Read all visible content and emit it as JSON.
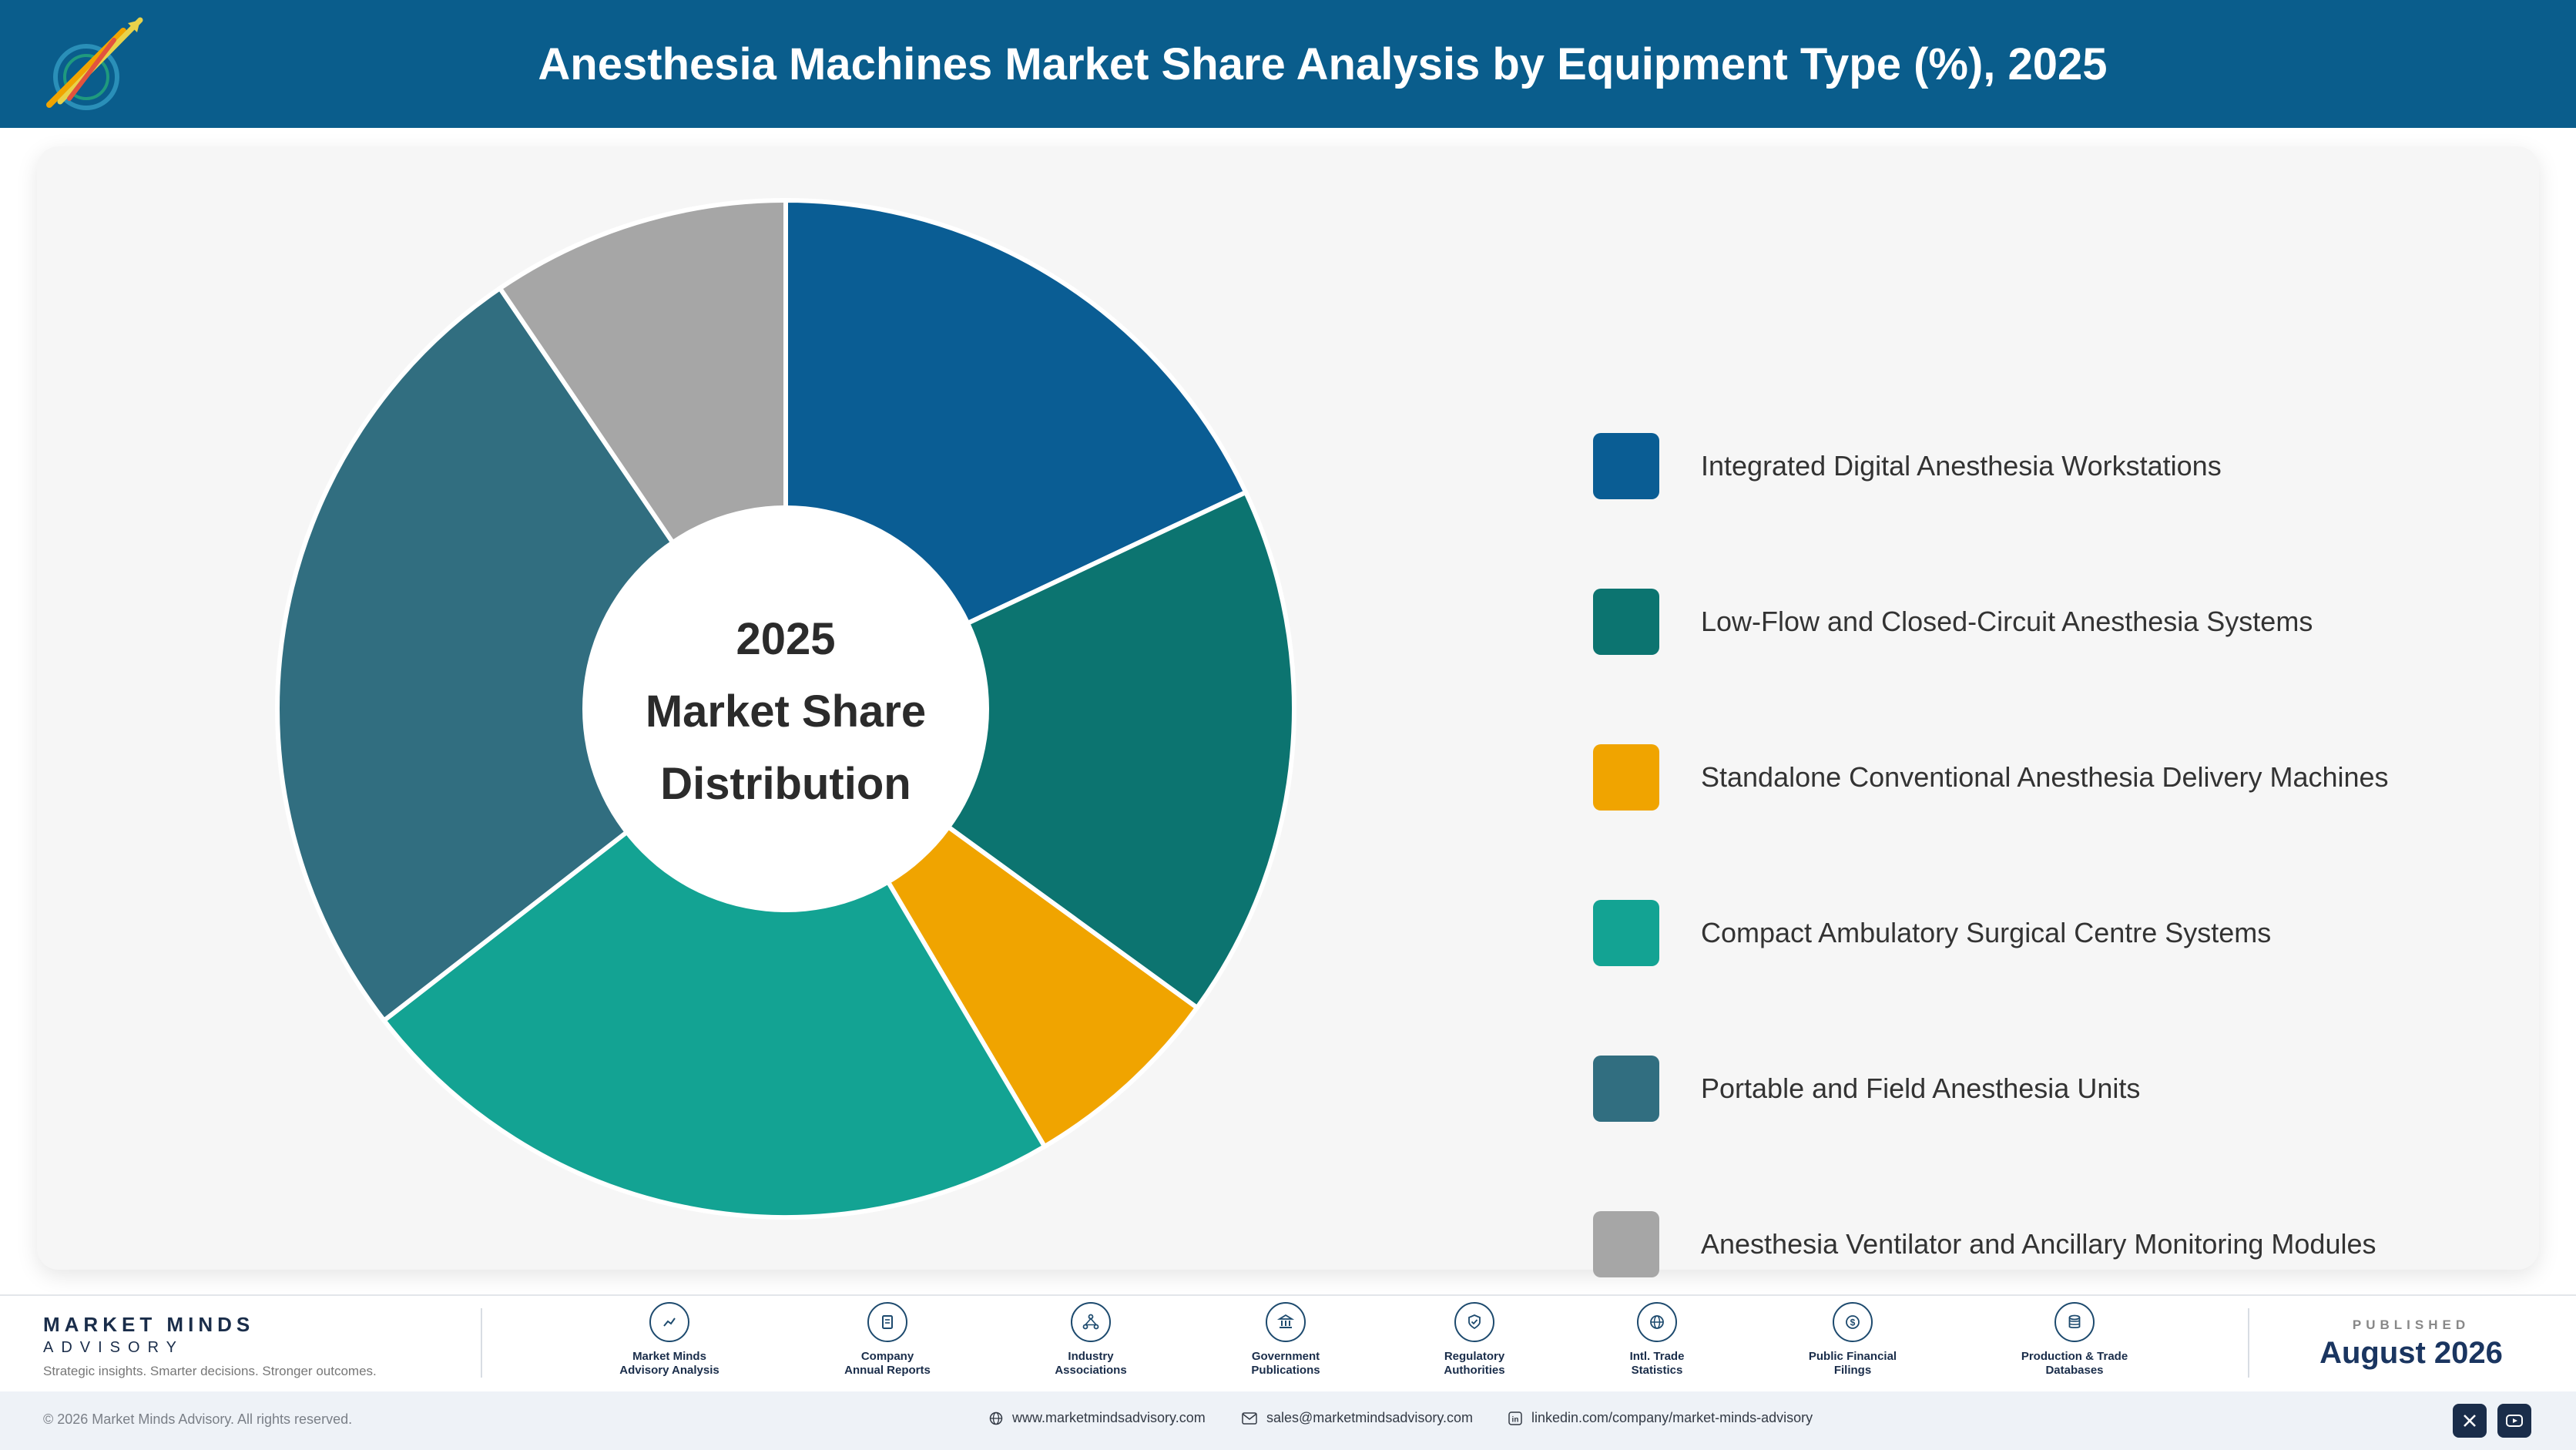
{
  "header": {
    "title": "Anesthesia Machines Market Share Analysis by Equipment Type (%), 2025"
  },
  "colors": {
    "header_bg": "#0a5d8c",
    "integrated": "#0a5d94",
    "low_flow": "#0c7470",
    "standalone": "#f0a400",
    "compact": "#13a393",
    "portable": "#316e80",
    "ventilator": "#a6a6a6"
  },
  "chart_data": {
    "type": "pie",
    "variant": "donut",
    "center_text": [
      "2025",
      "Market Share",
      "Distribution"
    ],
    "legend_placement": "right",
    "slices": [
      {
        "label": "Integrated Digital Anesthesia Workstations",
        "value": 18.0,
        "color": "#0a5d94"
      },
      {
        "label": "Low-Flow and Closed-Circuit Anesthesia Systems",
        "value": 17.0,
        "color": "#0c7470"
      },
      {
        "label": "Standalone Conventional Anesthesia Delivery Machines",
        "value": 6.5,
        "color": "#f0a400"
      },
      {
        "label": "Compact Ambulatory Surgical Centre Systems",
        "value": 23.0,
        "color": "#13a393"
      },
      {
        "label": "Portable and Field Anesthesia Units",
        "value": 26.0,
        "color": "#316e80"
      },
      {
        "label": "Anesthesia Ventilator and Ancillary Monitoring Modules",
        "value": 9.5,
        "color": "#a6a6a6"
      }
    ]
  },
  "footer": {
    "brand_name": "MARKET MINDS",
    "brand_sub": "ADVISORY",
    "tagline": "Strategic insights. Smarter decisions. Stronger outcomes.",
    "sources": [
      {
        "label": "Market Minds\nAdvisory Analysis",
        "icon": "chart-line-icon"
      },
      {
        "label": "Company\nAnnual Reports",
        "icon": "document-icon"
      },
      {
        "label": "Industry\nAssociations",
        "icon": "network-icon"
      },
      {
        "label": "Government\nPublications",
        "icon": "government-building-icon"
      },
      {
        "label": "Regulatory\nAuthorities",
        "icon": "shield-check-icon"
      },
      {
        "label": "Intl. Trade\nStatistics",
        "icon": "globe-icon"
      },
      {
        "label": "Public Financial\nFilings",
        "icon": "dollar-coin-icon"
      },
      {
        "label": "Production & Trade\nDatabases",
        "icon": "database-icon"
      }
    ],
    "published_label": "PUBLISHED",
    "published_date": "August 2026"
  },
  "bottom_bar": {
    "copyright": "© 2026 Market Minds Advisory. All rights reserved.",
    "website": "www.marketmindsadvisory.com",
    "email": "sales@marketmindsadvisory.com",
    "linkedin": "linkedin.com/company/market-minds-advisory"
  }
}
